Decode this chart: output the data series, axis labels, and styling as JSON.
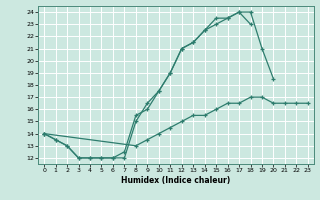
{
  "xlabel": "Humidex (Indice chaleur)",
  "bg_color": "#cce8e0",
  "grid_color": "#ffffff",
  "line_color": "#2e7d6e",
  "xlim": [
    -0.5,
    23.5
  ],
  "ylim": [
    11.5,
    24.5
  ],
  "xticks": [
    0,
    1,
    2,
    3,
    4,
    5,
    6,
    7,
    8,
    9,
    10,
    11,
    12,
    13,
    14,
    15,
    16,
    17,
    18,
    19,
    20,
    21,
    22,
    23
  ],
  "yticks": [
    12,
    13,
    14,
    15,
    16,
    17,
    18,
    19,
    20,
    21,
    22,
    23,
    24
  ],
  "line1_x": [
    0,
    1,
    2,
    3,
    4,
    5,
    6,
    7,
    8,
    9,
    10,
    11,
    12,
    13,
    14,
    15,
    16,
    17,
    18,
    19,
    20
  ],
  "line1_y": [
    14.0,
    13.5,
    13.0,
    12.0,
    12.0,
    12.0,
    12.0,
    12.0,
    15.0,
    16.5,
    17.5,
    19.0,
    21.0,
    21.5,
    22.5,
    23.0,
    23.5,
    24.0,
    24.0,
    21.0,
    18.5
  ],
  "line2_x": [
    0,
    1,
    2,
    3,
    4,
    5,
    6,
    7,
    8,
    9,
    10,
    11,
    12,
    13,
    14,
    15,
    16,
    17,
    18
  ],
  "line2_y": [
    14.0,
    13.5,
    13.0,
    12.0,
    12.0,
    12.0,
    12.0,
    12.5,
    15.5,
    16.0,
    17.5,
    19.0,
    21.0,
    21.5,
    22.5,
    23.5,
    23.5,
    24.0,
    23.0
  ],
  "line3_x": [
    0,
    8,
    9,
    10,
    11,
    12,
    13,
    14,
    15,
    16,
    17,
    18,
    19,
    20,
    21,
    22,
    23
  ],
  "line3_y": [
    14.0,
    13.0,
    13.5,
    14.0,
    14.5,
    15.0,
    15.5,
    15.5,
    16.0,
    16.5,
    16.5,
    17.0,
    17.0,
    16.5,
    16.5,
    16.5,
    16.5
  ],
  "marker": "+"
}
